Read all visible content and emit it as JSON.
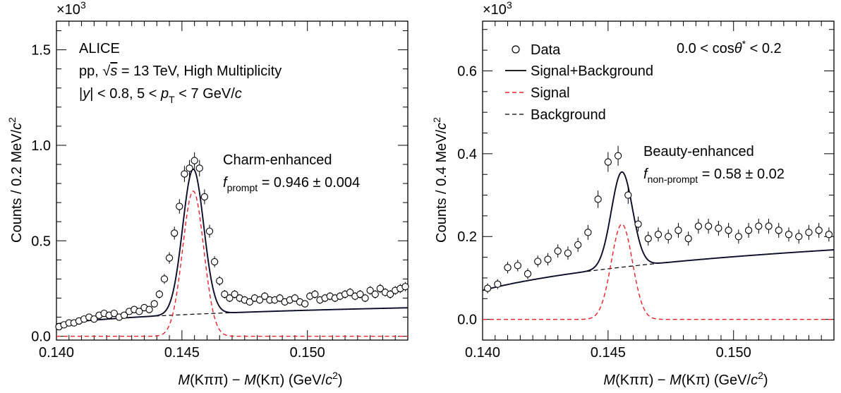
{
  "chart_data": [
    {
      "type": "scatter",
      "xlabel": {
        "m1": "M",
        "p1": "(Kππ) − ",
        "m2": "M",
        "p2": "(Kπ) (GeV/",
        "c": "c",
        "sup": "2",
        "close": ")"
      },
      "ylabel": {
        "pre": "Counts / 0.2 MeV/",
        "c": "c",
        "sup": "2"
      },
      "multiplier": {
        "base": "×10",
        "exp": "3"
      },
      "xlim": [
        0.14,
        0.154
      ],
      "ylim": [
        -0.02,
        1.65
      ],
      "xticks": [
        "0.140",
        "0.145",
        "0.150"
      ],
      "yticks": [
        "0.0",
        "0.5",
        "1.0",
        "1.5"
      ],
      "annotations": {
        "line1": "ALICE",
        "line2_pre": "pp, ",
        "line2_sqrt": "√",
        "line2_s": "s",
        "line2_post": " = 13 TeV, High Multiplicity",
        "line3_a": "|",
        "line3_y": "y",
        "line3_b": "| < 0.8,  5 < ",
        "line3_p": "p",
        "line3_T": "T",
        "line3_c": " <  7 GeV/",
        "line3_cc": "c",
        "enh_title": "Charm-enhanced",
        "frac_f": "f",
        "frac_sub": "prompt",
        "frac_val": " = 0.946 ± 0.004"
      },
      "model": {
        "mu": 0.14545,
        "sigma": 0.00042,
        "amp": 0.76,
        "bkg_a": 0.057,
        "bkg_b": 0.00024,
        "bkg_c": 0.0062
      },
      "data_x": [
        0.1401,
        0.1403,
        0.1405,
        0.1407,
        0.1409,
        0.1411,
        0.1413,
        0.1415,
        0.1417,
        0.1419,
        0.1421,
        0.1423,
        0.1425,
        0.1427,
        0.1429,
        0.1431,
        0.1433,
        0.1435,
        0.1437,
        0.1439,
        0.1441,
        0.1443,
        0.1445,
        0.1447,
        0.1449,
        0.1451,
        0.1453,
        0.1455,
        0.1457,
        0.1459,
        0.1461,
        0.1463,
        0.1465,
        0.1467,
        0.1469,
        0.1471,
        0.1473,
        0.1475,
        0.1477,
        0.1479,
        0.1481,
        0.1483,
        0.1485,
        0.1487,
        0.1489,
        0.1491,
        0.1493,
        0.1495,
        0.1497,
        0.1499,
        0.1501,
        0.1503,
        0.1505,
        0.1507,
        0.1509,
        0.1511,
        0.1513,
        0.1515,
        0.1517,
        0.1519,
        0.1521,
        0.1523,
        0.1525,
        0.1527,
        0.1529,
        0.1531,
        0.1533,
        0.1535,
        0.1537,
        0.1539
      ],
      "data_y": [
        0.05,
        0.06,
        0.07,
        0.07,
        0.08,
        0.09,
        0.1,
        0.09,
        0.11,
        0.12,
        0.11,
        0.12,
        0.1,
        0.11,
        0.13,
        0.14,
        0.13,
        0.15,
        0.14,
        0.17,
        0.22,
        0.3,
        0.41,
        0.54,
        0.68,
        0.85,
        0.88,
        0.92,
        0.88,
        0.73,
        0.55,
        0.39,
        0.29,
        0.22,
        0.2,
        0.22,
        0.2,
        0.19,
        0.18,
        0.2,
        0.19,
        0.21,
        0.19,
        0.19,
        0.2,
        0.18,
        0.19,
        0.2,
        0.18,
        0.17,
        0.21,
        0.22,
        0.19,
        0.2,
        0.21,
        0.2,
        0.21,
        0.22,
        0.23,
        0.21,
        0.22,
        0.2,
        0.24,
        0.22,
        0.25,
        0.23,
        0.22,
        0.24,
        0.25,
        0.26
      ],
      "data_err": [
        0.013,
        0.014,
        0.014,
        0.014,
        0.015,
        0.016,
        0.016,
        0.016,
        0.017,
        0.017,
        0.017,
        0.017,
        0.016,
        0.017,
        0.018,
        0.019,
        0.018,
        0.019,
        0.019,
        0.02,
        0.022,
        0.026,
        0.03,
        0.034,
        0.038,
        0.042,
        0.043,
        0.044,
        0.043,
        0.039,
        0.034,
        0.029,
        0.025,
        0.022,
        0.021,
        0.022,
        0.021,
        0.02,
        0.02,
        0.021,
        0.02,
        0.021,
        0.02,
        0.02,
        0.021,
        0.02,
        0.02,
        0.021,
        0.02,
        0.019,
        0.021,
        0.022,
        0.02,
        0.021,
        0.021,
        0.021,
        0.021,
        0.022,
        0.022,
        0.021,
        0.022,
        0.021,
        0.023,
        0.022,
        0.024,
        0.022,
        0.022,
        0.023,
        0.024,
        0.024
      ]
    },
    {
      "type": "scatter",
      "xlabel": {
        "m1": "M",
        "p1": "(Kππ) − ",
        "m2": "M",
        "p2": "(Kπ) (GeV/",
        "c": "c",
        "sup": "2",
        "close": ")"
      },
      "ylabel": {
        "pre": "Counts / 0.4 MeV/",
        "c": "c",
        "sup": "2"
      },
      "multiplier": {
        "base": "×10",
        "exp": "3"
      },
      "xlim": [
        0.14,
        0.154
      ],
      "ylim": [
        -0.05,
        0.72
      ],
      "xticks": [
        "0.140",
        "0.145",
        "0.150"
      ],
      "yticks": [
        "0.0",
        "0.2",
        "0.4",
        "0.6"
      ],
      "annotations": {
        "cos_a": "0.0 < cos",
        "cos_theta": "θ",
        "cos_star": "*",
        "cos_b": " < 0.2",
        "enh_title": "Beauty-enhanced",
        "frac_f": "f",
        "frac_sub": "non-prompt",
        "frac_val": " = 0.58 ± 0.02"
      },
      "legend": {
        "position": "top-left",
        "items": [
          "Data",
          "Signal+Background",
          "Signal",
          "Background"
        ]
      },
      "model": {
        "mu": 0.14555,
        "sigma": 0.00042,
        "amp": 0.23,
        "bkg_a": 0.063,
        "bkg_b": 0.00034,
        "bkg_c": 0.0098
      },
      "data_x": [
        0.1402,
        0.1406,
        0.141,
        0.1414,
        0.1418,
        0.1422,
        0.1426,
        0.143,
        0.1434,
        0.1438,
        0.1442,
        0.1446,
        0.145,
        0.1454,
        0.1458,
        0.1462,
        0.1466,
        0.147,
        0.1474,
        0.1478,
        0.1482,
        0.1486,
        0.149,
        0.1494,
        0.1498,
        0.1502,
        0.1506,
        0.151,
        0.1514,
        0.1518,
        0.1522,
        0.1526,
        0.153,
        0.1534,
        0.1538
      ],
      "data_y": [
        0.075,
        0.085,
        0.125,
        0.13,
        0.11,
        0.14,
        0.145,
        0.165,
        0.16,
        0.18,
        0.21,
        0.29,
        0.38,
        0.395,
        0.3,
        0.23,
        0.195,
        0.205,
        0.2,
        0.215,
        0.195,
        0.225,
        0.225,
        0.22,
        0.215,
        0.2,
        0.215,
        0.225,
        0.225,
        0.215,
        0.205,
        0.2,
        0.21,
        0.215,
        0.205
      ],
      "data_err": [
        0.012,
        0.012,
        0.014,
        0.014,
        0.013,
        0.014,
        0.015,
        0.016,
        0.016,
        0.017,
        0.018,
        0.021,
        0.024,
        0.024,
        0.021,
        0.018,
        0.017,
        0.017,
        0.017,
        0.018,
        0.017,
        0.018,
        0.018,
        0.018,
        0.018,
        0.017,
        0.018,
        0.018,
        0.018,
        0.018,
        0.017,
        0.017,
        0.018,
        0.018,
        0.017
      ]
    }
  ]
}
